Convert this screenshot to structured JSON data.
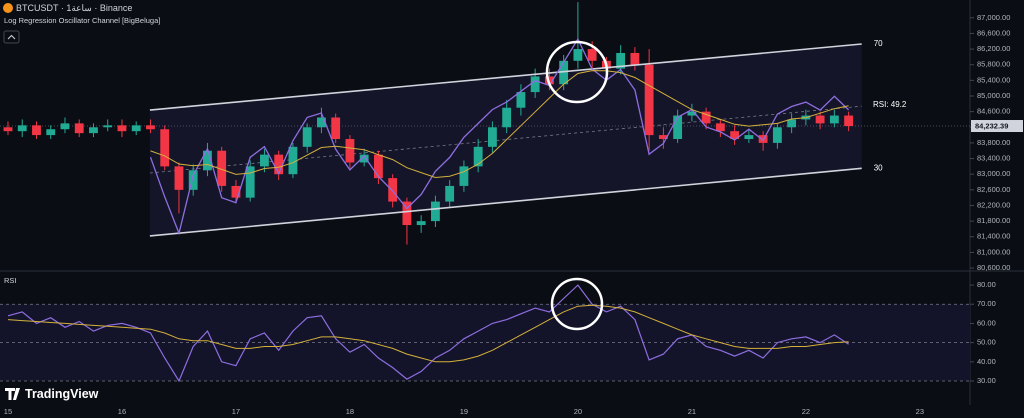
{
  "chart_data": [
    {
      "type": "candlestick",
      "title": "BTCUSDT · 1ساعة · Binance",
      "subtitle": "Log Regression Oscillator Channel [BigBeluga]",
      "watermark": "TradingView",
      "xlim": [
        14.93,
        23.44
      ],
      "ylim": [
        80550,
        87455
      ],
      "yticks": [
        {
          "value": 80600,
          "label": "80,600.00"
        },
        {
          "value": 81000,
          "label": "81,000.00"
        },
        {
          "value": 81400,
          "label": "81,400.00"
        },
        {
          "value": 81800,
          "label": "81,800.00"
        },
        {
          "value": 82200,
          "label": "82,200.00"
        },
        {
          "value": 82600,
          "label": "82,600.00"
        },
        {
          "value": 83000,
          "label": "83,000.00"
        },
        {
          "value": 83400,
          "label": "83,400.00"
        },
        {
          "value": 83800,
          "label": "83,800.00"
        },
        {
          "value": 84200,
          "label": "84,200.00"
        },
        {
          "value": 84600,
          "label": "84,600.00"
        },
        {
          "value": 85000,
          "label": "85,000.00"
        },
        {
          "value": 85400,
          "label": "85,400.00"
        },
        {
          "value": 85800,
          "label": "85,800.00"
        },
        {
          "value": 86200,
          "label": "86,200.00"
        },
        {
          "value": 86600,
          "label": "86,600.00"
        },
        {
          "value": 87000,
          "label": "87,000.00"
        }
      ],
      "up_color": "#22ab94",
      "down_color": "#f23645",
      "x": [
        15,
        15.125,
        15.25,
        15.375,
        15.5,
        15.625,
        15.75,
        15.875,
        16,
        16.125,
        16.25,
        16.375,
        16.5,
        16.625,
        16.75,
        16.875,
        17,
        17.125,
        17.25,
        17.375,
        17.5,
        17.625,
        17.75,
        17.875,
        18,
        18.125,
        18.25,
        18.375,
        18.5,
        18.625,
        18.75,
        18.875,
        19,
        19.125,
        19.25,
        19.375,
        19.5,
        19.625,
        19.75,
        19.875,
        20,
        20.125,
        20.25,
        20.375,
        20.5,
        20.625,
        20.75,
        20.875,
        21,
        21.125,
        21.25,
        21.375,
        21.5,
        21.625,
        21.75,
        21.875,
        22,
        22.125,
        22.25,
        22.375
      ],
      "open": [
        84200,
        84100,
        84250,
        84000,
        84150,
        84300,
        84050,
        84200,
        84250,
        84100,
        84250,
        84150,
        83200,
        82600,
        83100,
        83600,
        82700,
        82400,
        83200,
        83500,
        83000,
        83700,
        84200,
        84450,
        83900,
        83300,
        83500,
        82900,
        82300,
        81700,
        81800,
        82300,
        82700,
        83200,
        83700,
        84200,
        84700,
        85100,
        85500,
        85300,
        85900,
        86200,
        85900,
        85700,
        86100,
        85800,
        84000,
        83900,
        84500,
        84600,
        84300,
        84100,
        83900,
        84000,
        83800,
        84200,
        84400,
        84500,
        84300,
        84500
      ],
      "high": [
        84350,
        84400,
        84350,
        84250,
        84450,
        84400,
        84300,
        84400,
        84400,
        84350,
        84400,
        84250,
        83300,
        83250,
        83800,
        83700,
        82850,
        83350,
        83650,
        83600,
        83800,
        84300,
        84700,
        84550,
        84000,
        83650,
        83600,
        83000,
        82400,
        81950,
        82450,
        82850,
        83350,
        83900,
        84350,
        84900,
        85300,
        85700,
        85700,
        86050,
        87400,
        86400,
        86000,
        86300,
        86250,
        86200,
        84200,
        84650,
        84800,
        84700,
        84400,
        84250,
        84150,
        84100,
        84300,
        84550,
        84650,
        84600,
        84650,
        84600
      ],
      "low": [
        84000,
        83950,
        83900,
        83900,
        84050,
        83950,
        83950,
        84100,
        83950,
        84000,
        84050,
        83100,
        82000,
        82450,
        82950,
        82550,
        82250,
        82300,
        83050,
        82850,
        82900,
        83550,
        84050,
        83800,
        83150,
        83200,
        82750,
        82150,
        81200,
        81500,
        81650,
        82150,
        82550,
        83050,
        83550,
        84050,
        84500,
        84950,
        85150,
        85150,
        85700,
        85650,
        85500,
        85550,
        85650,
        83600,
        83650,
        83800,
        84350,
        84150,
        83950,
        83750,
        83800,
        83600,
        83650,
        84050,
        84250,
        84150,
        84200,
        84100
      ],
      "close": [
        84100,
        84250,
        84000,
        84150,
        84300,
        84050,
        84200,
        84250,
        84100,
        84250,
        84150,
        83200,
        82600,
        83100,
        83600,
        82700,
        82400,
        83200,
        83500,
        83000,
        83700,
        84200,
        84450,
        83900,
        83300,
        83500,
        82900,
        82300,
        81700,
        81800,
        82300,
        82700,
        83200,
        83700,
        84200,
        84700,
        85100,
        85500,
        85300,
        85900,
        86200,
        85900,
        85700,
        86100,
        85800,
        84000,
        83900,
        84500,
        84600,
        84300,
        84100,
        83900,
        84000,
        83800,
        84200,
        84400,
        84500,
        84300,
        84500,
        84232
      ],
      "channel": {
        "x": [
          16.245,
          22.49
        ],
        "upper": [
          84640,
          86330
        ],
        "lower": [
          81420,
          83150
        ],
        "levels": [
          70,
          30
        ],
        "color": "#d1d4dc",
        "fill": "#15152a"
      },
      "last_price": {
        "value": 84232.39,
        "label": "84,232.39"
      },
      "rsi_label": "RSI:  49.2"
    },
    {
      "type": "line",
      "title": "RSI",
      "xlim": [
        14.93,
        23.44
      ],
      "ylim": [
        17.5,
        86.8
      ],
      "xticks": [
        15,
        16,
        17,
        18,
        19,
        20,
        21,
        22,
        23
      ],
      "yticks": [
        {
          "value": 30,
          "label": "30.00"
        },
        {
          "value": 40,
          "label": "40.00"
        },
        {
          "value": 50,
          "label": "50.00"
        },
        {
          "value": 60,
          "label": "60.00"
        },
        {
          "value": 70,
          "label": "70.00"
        },
        {
          "value": 80,
          "label": "80.00"
        }
      ],
      "levels": [
        70,
        50,
        30
      ],
      "x": [
        15,
        15.125,
        15.25,
        15.375,
        15.5,
        15.625,
        15.75,
        15.875,
        16,
        16.125,
        16.25,
        16.375,
        16.5,
        16.625,
        16.75,
        16.875,
        17,
        17.125,
        17.25,
        17.375,
        17.5,
        17.625,
        17.75,
        17.875,
        18,
        18.125,
        18.25,
        18.375,
        18.5,
        18.625,
        18.75,
        18.875,
        19,
        19.125,
        19.25,
        19.375,
        19.5,
        19.625,
        19.75,
        19.875,
        20,
        20.125,
        20.25,
        20.375,
        20.5,
        20.625,
        20.75,
        20.875,
        21,
        21.125,
        21.25,
        21.375,
        21.5,
        21.625,
        21.75,
        21.875,
        22,
        22.125,
        22.25,
        22.375
      ],
      "series": [
        {
          "color": "#8e6ee0",
          "values": [
            64,
            66,
            60,
            63,
            58,
            61,
            56,
            59,
            60,
            58,
            55,
            42,
            30,
            48,
            56,
            40,
            38,
            52,
            55,
            46,
            56,
            63,
            64,
            52,
            45,
            49,
            42,
            37,
            31,
            35,
            42,
            46,
            52,
            56,
            60,
            62,
            65,
            68,
            66,
            73,
            80,
            70,
            66,
            69,
            62,
            41,
            44,
            52,
            54,
            48,
            46,
            43,
            46,
            42,
            50,
            52,
            53,
            50,
            54,
            49.2
          ]
        },
        {
          "color": "#d4b13b",
          "values": [
            62,
            61.5,
            61,
            60.5,
            60,
            59.5,
            59,
            58.5,
            58,
            57.5,
            57,
            55,
            52,
            51,
            51,
            49,
            47,
            47,
            48,
            48,
            49,
            51,
            53,
            53,
            52,
            51,
            49,
            47,
            44,
            42,
            40,
            40,
            41,
            43,
            46,
            50,
            54,
            58,
            62,
            66,
            69,
            69.5,
            69,
            68,
            66,
            63,
            60,
            57,
            54,
            52,
            50,
            48,
            47,
            47,
            47,
            48,
            48,
            49,
            50,
            50.5
          ]
        }
      ]
    }
  ]
}
